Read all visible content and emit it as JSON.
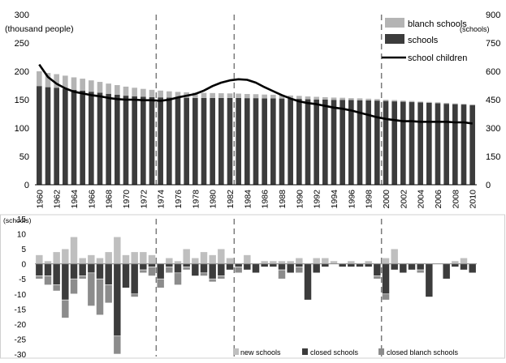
{
  "chart_data": [
    {
      "type": "bar",
      "subtype": "stacked bar with line on secondary axis",
      "x": [
        1960,
        1961,
        1962,
        1963,
        1964,
        1965,
        1966,
        1967,
        1968,
        1969,
        1970,
        1971,
        1972,
        1973,
        1974,
        1975,
        1976,
        1977,
        1978,
        1979,
        1980,
        1981,
        1982,
        1983,
        1984,
        1985,
        1986,
        1987,
        1988,
        1989,
        1990,
        1991,
        1992,
        1993,
        1994,
        1995,
        1996,
        1997,
        1998,
        1999,
        2000,
        2001,
        2002,
        2003,
        2004,
        2005,
        2006,
        2007,
        2008,
        2009,
        2010
      ],
      "xticks": [
        "1960",
        "1962",
        "1964",
        "1966",
        "1968",
        "1970",
        "1972",
        "1974",
        "1976",
        "1978",
        "1980",
        "1982",
        "1984",
        "1986",
        "1988",
        "1990",
        "1992",
        "1994",
        "1996",
        "1998",
        "2000",
        "2002",
        "2004",
        "2006",
        "2008",
        "2010"
      ],
      "ylabel": "(thousand people)",
      "ylim": [
        0,
        300
      ],
      "yticks": [
        "0",
        "50",
        "100",
        "150",
        "200",
        "250",
        "300"
      ],
      "y2label": "(schools)",
      "y2lim": [
        0,
        900
      ],
      "y2ticks": [
        "0",
        "150",
        "300",
        "450",
        "600",
        "750",
        "900"
      ],
      "reference_years": [
        1973.5,
        1982.5,
        1999.5
      ],
      "series": [
        {
          "name": "schools",
          "axis": "right",
          "color": "#3c3c3c",
          "values": [
            522,
            516,
            513,
            508,
            502,
            498,
            492,
            487,
            481,
            476,
            471,
            468,
            465,
            463,
            462,
            461,
            460,
            460,
            459,
            459,
            459,
            459,
            459,
            459,
            458,
            458,
            457,
            457,
            456,
            455,
            454,
            452,
            451,
            450,
            449,
            449,
            448,
            447,
            446,
            445,
            443,
            441,
            439,
            437,
            435,
            433,
            431,
            428,
            426,
            424,
            421
          ]
        },
        {
          "name": "blanch schools",
          "axis": "right",
          "color": "#b4b4b4",
          "values": [
            78,
            75,
            72,
            69,
            66,
            63,
            60,
            57,
            54,
            51,
            48,
            45,
            42,
            39,
            36,
            33,
            31,
            29,
            28,
            27,
            26,
            25,
            24,
            23,
            22,
            21,
            20,
            19,
            18,
            17,
            16,
            15,
            14,
            13,
            12,
            11,
            10,
            10,
            9,
            8,
            7,
            7,
            6,
            6,
            5,
            5,
            5,
            5,
            4,
            4,
            4
          ]
        },
        {
          "name": "school children",
          "axis": "left",
          "type": "line",
          "color": "#000000",
          "values": [
            212,
            190,
            178,
            170,
            164,
            161,
            158,
            156,
            153,
            151,
            150,
            150,
            149,
            149,
            148,
            150,
            154,
            157,
            160,
            166,
            174,
            180,
            184,
            186,
            185,
            180,
            172,
            165,
            158,
            152,
            147,
            144,
            142,
            139,
            136,
            134,
            131,
            127,
            123,
            119,
            116,
            114,
            112,
            112,
            111,
            111,
            111,
            111,
            110,
            110,
            108
          ]
        }
      ]
    },
    {
      "type": "bar",
      "subtype": "diverging bar",
      "x": [
        1960,
        1961,
        1962,
        1963,
        1964,
        1965,
        1966,
        1967,
        1968,
        1969,
        1970,
        1971,
        1972,
        1973,
        1974,
        1975,
        1976,
        1977,
        1978,
        1979,
        1980,
        1981,
        1982,
        1983,
        1984,
        1985,
        1986,
        1987,
        1988,
        1989,
        1990,
        1991,
        1992,
        1993,
        1994,
        1995,
        1996,
        1997,
        1998,
        1999,
        2000,
        2001,
        2002,
        2003,
        2004,
        2005,
        2006,
        2007,
        2008,
        2009,
        2010
      ],
      "ylabel": "(schools)",
      "ylim": [
        -30,
        15
      ],
      "yticks": [
        "15",
        "10",
        "5",
        "0",
        "-5",
        "-10",
        "-15",
        "-20",
        "-25",
        "-30"
      ],
      "reference_years": [
        1973.5,
        1982.5,
        1999.5
      ],
      "series": [
        {
          "name": "new schools",
          "color": "#bfbfbf",
          "values": [
            3,
            1,
            4,
            5,
            9,
            2,
            3,
            2,
            4,
            9,
            3,
            4,
            4,
            3,
            0,
            2,
            1,
            5,
            2,
            4,
            3,
            5,
            2,
            0,
            3,
            0,
            1,
            1,
            1,
            1,
            2,
            0,
            2,
            2,
            1,
            0,
            1,
            0,
            1,
            0,
            2,
            5,
            0,
            0,
            0,
            0,
            0,
            0,
            1,
            2,
            0
          ]
        },
        {
          "name": "closed schools",
          "color": "#3c3c3c",
          "values": [
            -4,
            -4,
            -7,
            -12,
            -5,
            -4,
            -3,
            -5,
            -7,
            -24,
            -8,
            -10,
            -2,
            -1,
            -5,
            -1,
            -3,
            -1,
            -4,
            -3,
            -5,
            -4,
            -2,
            -1,
            -2,
            -3,
            -1,
            -1,
            -2,
            -3,
            -1,
            -12,
            -3,
            -1,
            0,
            -1,
            -1,
            -1,
            -1,
            -4,
            -10,
            -2,
            -3,
            -2,
            -2,
            -11,
            0,
            -5,
            -1,
            -2,
            -3
          ]
        },
        {
          "name": "closed blanch schools",
          "color": "#8c8c8c",
          "values": [
            -1,
            -3,
            -2,
            -6,
            -5,
            -1,
            -11,
            -12,
            -6,
            -6,
            0,
            -1,
            -1,
            -3,
            -3,
            -2,
            -4,
            -1,
            0,
            -1,
            -1,
            -1,
            0,
            -2,
            0,
            0,
            0,
            0,
            -3,
            0,
            -2,
            0,
            0,
            0,
            0,
            0,
            0,
            0,
            0,
            -1,
            -2,
            0,
            0,
            0,
            -1,
            0,
            0,
            0,
            0,
            0,
            0
          ]
        }
      ]
    }
  ]
}
